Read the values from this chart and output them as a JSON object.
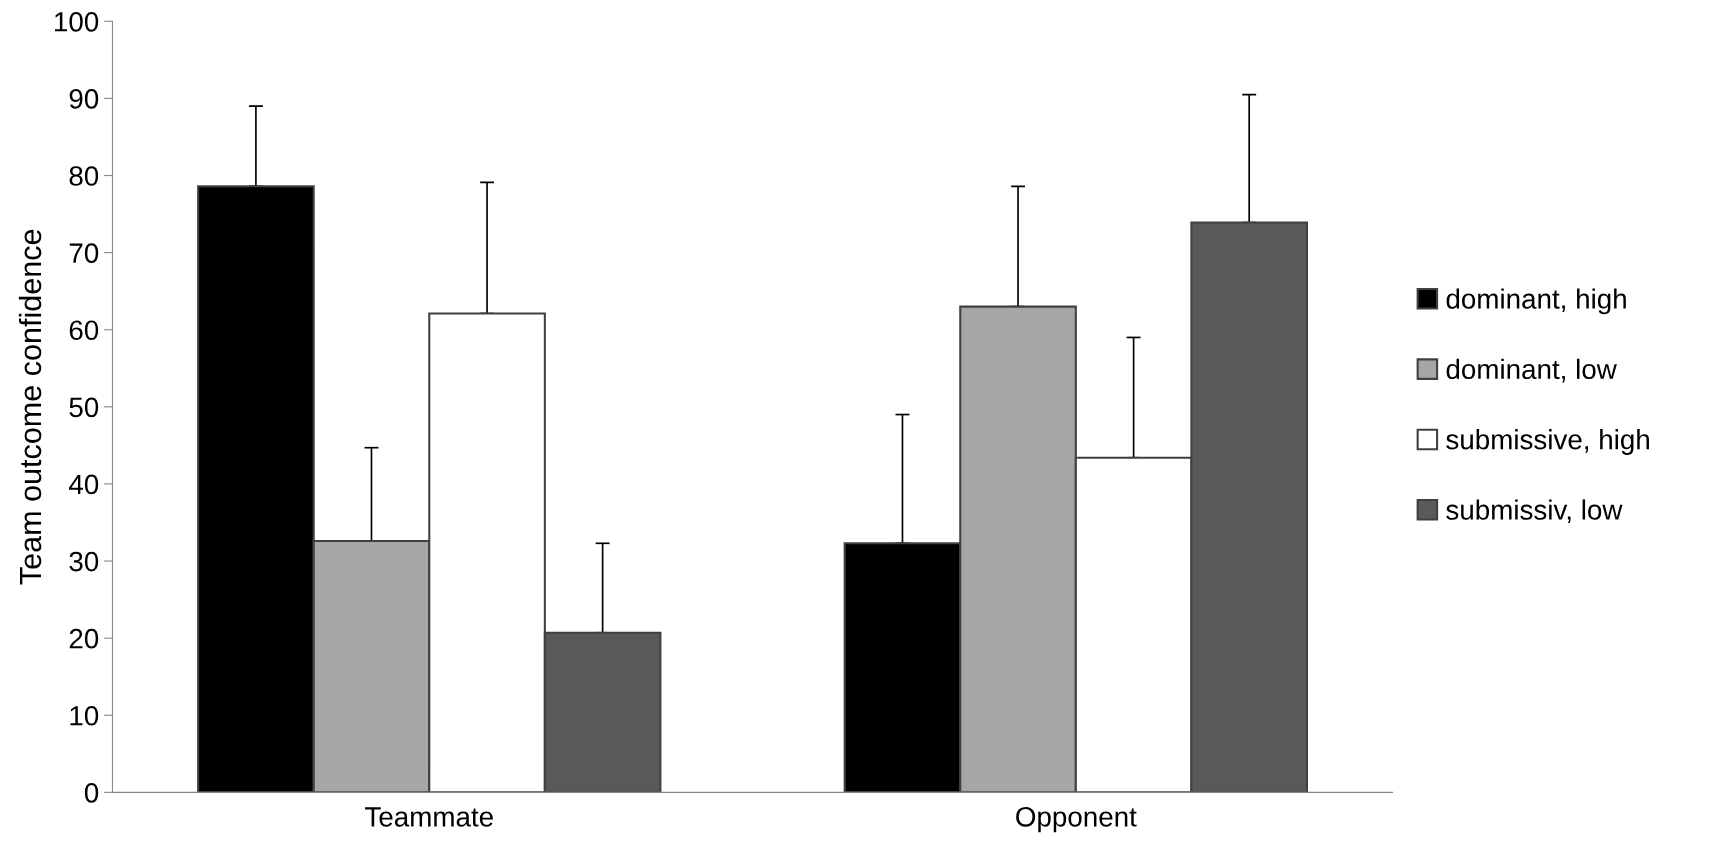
{
  "chart_data": {
    "type": "bar",
    "ylabel": "Team outcome confidence",
    "categories": [
      "Teammate",
      "Opponent"
    ],
    "series": [
      {
        "name": "dominant, high",
        "color": "#000000",
        "values": [
          78.6,
          32.3
        ],
        "errors": [
          [
            78.6,
            89.0
          ],
          [
            32.3,
            49.0
          ]
        ]
      },
      {
        "name": "dominant, low",
        "color": "#a6a6a6",
        "values": [
          32.6,
          63.0
        ],
        "errors": [
          [
            32.6,
            44.7
          ],
          [
            63.0,
            78.6
          ]
        ]
      },
      {
        "name": "submissive, high",
        "color": "#ffffff",
        "values": [
          62.1,
          43.4
        ],
        "errors": [
          [
            62.1,
            79.1
          ],
          [
            43.4,
            59.0
          ]
        ]
      },
      {
        "name": "submissiv, low",
        "color": "#595959",
        "values": [
          20.7,
          73.9
        ],
        "errors": [
          [
            20.7,
            32.3
          ],
          [
            73.9,
            90.5
          ]
        ]
      }
    ],
    "ylim": [
      0,
      100
    ],
    "yticks": [
      0,
      10,
      20,
      30,
      40,
      50,
      60,
      70,
      80,
      90,
      100
    ],
    "grid": false,
    "legend": "right"
  }
}
